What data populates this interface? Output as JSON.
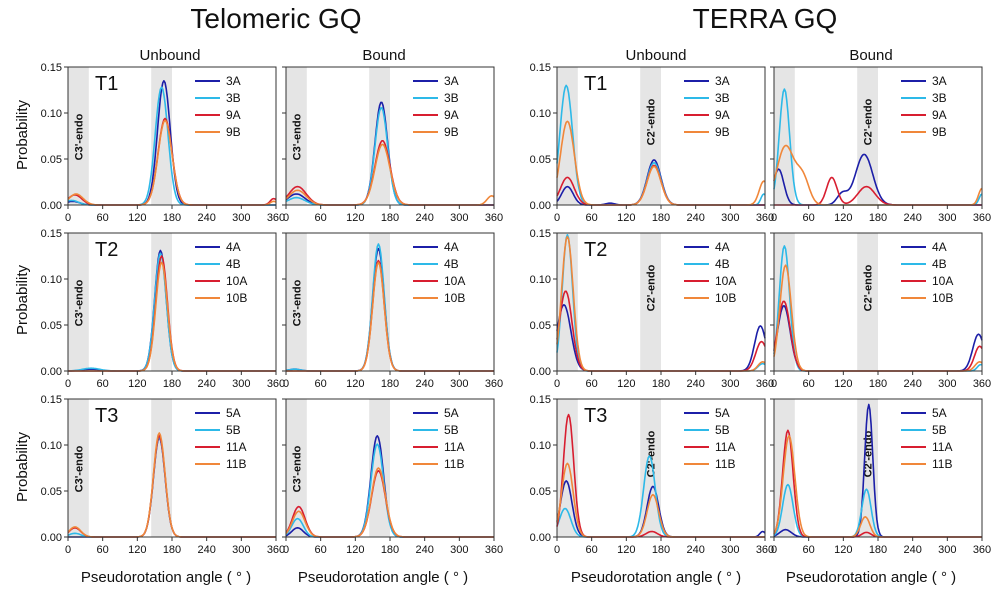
{
  "groups": {
    "telomeric": {
      "title": "Telomeric GQ"
    },
    "terra": {
      "title": "TERRA GQ"
    }
  },
  "columns": {
    "unbound": "Unbound",
    "bound": "Bound"
  },
  "axis": {
    "xlabel": "Pseudorotation angle ( ° )",
    "ylabel": "Probability",
    "xticks": [
      0,
      60,
      120,
      180,
      240,
      300,
      360
    ],
    "yticks": [
      "0.00",
      "0.05",
      "0.10",
      "0.15"
    ]
  },
  "rows": {
    "T1": {
      "label": "T1"
    },
    "T2": {
      "label": "T2"
    },
    "T3": {
      "label": "T3"
    }
  },
  "shade_labels": {
    "c3": "C3'-endo",
    "c2": "C2'-endo"
  },
  "colors": {
    "s1": "#1c1fa8",
    "s2": "#2db9e8",
    "s3": "#d81e30",
    "s4": "#f0873a",
    "shade": "#dcdcdc"
  },
  "chart_data": [
    {
      "type": "line",
      "group": "telomeric",
      "column": "unbound",
      "row": "T1",
      "xlim": [
        0,
        360
      ],
      "ylim": [
        0,
        0.15
      ],
      "shade_label": "c3",
      "series": [
        {
          "name": "3A",
          "color": "#1c1fa8",
          "peaks": [
            [
              166,
              11,
              0.135
            ],
            [
              8,
              12,
              0.004
            ]
          ]
        },
        {
          "name": "3B",
          "color": "#2db9e8",
          "peaks": [
            [
              162,
              11,
              0.128
            ],
            [
              6,
              12,
              0.005
            ]
          ]
        },
        {
          "name": "9A",
          "color": "#d81e30",
          "peaks": [
            [
              168,
              12,
              0.094
            ],
            [
              12,
              12,
              0.011
            ],
            [
              356,
              6,
              0.007
            ]
          ]
        },
        {
          "name": "9B",
          "color": "#f0873a",
          "peaks": [
            [
              168,
              12,
              0.092
            ],
            [
              14,
              12,
              0.012
            ],
            [
              356,
              6,
              0.004
            ]
          ]
        }
      ]
    },
    {
      "type": "line",
      "group": "telomeric",
      "column": "bound",
      "row": "T1",
      "xlim": [
        0,
        360
      ],
      "ylim": [
        0,
        0.15
      ],
      "shade_label": "c3",
      "series": [
        {
          "name": "3A",
          "color": "#1c1fa8",
          "peaks": [
            [
              165,
              11,
              0.112
            ],
            [
              18,
              15,
              0.012
            ]
          ]
        },
        {
          "name": "3B",
          "color": "#2db9e8",
          "peaks": [
            [
              165,
              11,
              0.106
            ],
            [
              18,
              15,
              0.008
            ]
          ]
        },
        {
          "name": "9A",
          "color": "#d81e30",
          "peaks": [
            [
              167,
              13,
              0.07
            ],
            [
              20,
              15,
              0.02
            ]
          ]
        },
        {
          "name": "9B",
          "color": "#f0873a",
          "peaks": [
            [
              167,
              13,
              0.066
            ],
            [
              20,
              15,
              0.016
            ],
            [
              356,
              8,
              0.01
            ]
          ]
        }
      ]
    },
    {
      "type": "line",
      "group": "terra",
      "column": "unbound",
      "row": "T1",
      "xlim": [
        0,
        360
      ],
      "ylim": [
        0,
        0.15
      ],
      "shade_label": "c2",
      "series": [
        {
          "name": "3A",
          "color": "#1c1fa8",
          "peaks": [
            [
              168,
              12,
              0.049
            ],
            [
              18,
              10,
              0.02
            ],
            [
              92,
              8,
              0.002
            ]
          ]
        },
        {
          "name": "3B",
          "color": "#2db9e8",
          "peaks": [
            [
              16,
              11,
              0.13
            ],
            [
              168,
              12,
              0.046
            ],
            [
              358,
              5,
              0.012
            ]
          ]
        },
        {
          "name": "9A",
          "color": "#d81e30",
          "peaks": [
            [
              168,
              12,
              0.043
            ],
            [
              18,
              12,
              0.03
            ]
          ]
        },
        {
          "name": "9B",
          "color": "#f0873a",
          "peaks": [
            [
              18,
              12,
              0.091
            ],
            [
              168,
              12,
              0.042
            ],
            [
              358,
              8,
              0.026
            ]
          ]
        }
      ]
    },
    {
      "type": "line",
      "group": "terra",
      "column": "bound",
      "row": "T1",
      "xlim": [
        0,
        360
      ],
      "ylim": [
        0,
        0.15
      ],
      "shade_label": "c2",
      "series": [
        {
          "name": "3A",
          "color": "#1c1fa8",
          "peaks": [
            [
              8,
              9,
              0.039
            ],
            [
              156,
              15,
              0.055
            ],
            [
              118,
              9,
              0.012
            ]
          ]
        },
        {
          "name": "3B",
          "color": "#2db9e8",
          "peaks": [
            [
              18,
              9,
              0.126
            ],
            [
              360,
              5,
              0.012
            ]
          ]
        },
        {
          "name": "9A",
          "color": "#d81e30",
          "peaks": [
            [
              100,
              9,
              0.03
            ],
            [
              160,
              15,
              0.02
            ]
          ]
        },
        {
          "name": "9B",
          "color": "#f0873a",
          "peaks": [
            [
              20,
              15,
              0.064
            ],
            [
              50,
              11,
              0.028
            ],
            [
              360,
              6,
              0.018
            ]
          ]
        }
      ]
    },
    {
      "type": "line",
      "group": "telomeric",
      "column": "unbound",
      "row": "T2",
      "xlim": [
        0,
        360
      ],
      "ylim": [
        0,
        0.15
      ],
      "shade_label": "c3",
      "series": [
        {
          "name": "4A",
          "color": "#1c1fa8",
          "peaks": [
            [
              160,
              10,
              0.131
            ],
            [
              40,
              15,
              0.002
            ]
          ]
        },
        {
          "name": "4B",
          "color": "#2db9e8",
          "peaks": [
            [
              160,
              10,
              0.128
            ],
            [
              40,
              15,
              0.003
            ]
          ]
        },
        {
          "name": "10A",
          "color": "#d81e30",
          "peaks": [
            [
              162,
              10,
              0.125
            ]
          ]
        },
        {
          "name": "10B",
          "color": "#f0873a",
          "peaks": [
            [
              162,
              10,
              0.118
            ]
          ]
        }
      ]
    },
    {
      "type": "line",
      "group": "telomeric",
      "column": "bound",
      "row": "T2",
      "xlim": [
        0,
        360
      ],
      "ylim": [
        0,
        0.15
      ],
      "shade_label": "c3",
      "series": [
        {
          "name": "4A",
          "color": "#1c1fa8",
          "peaks": [
            [
              160,
              10,
              0.133
            ],
            [
              15,
              10,
              0.002
            ]
          ]
        },
        {
          "name": "4B",
          "color": "#2db9e8",
          "peaks": [
            [
              160,
              10,
              0.138
            ],
            [
              15,
              10,
              0.002
            ]
          ]
        },
        {
          "name": "10A",
          "color": "#d81e30",
          "peaks": [
            [
              160,
              10,
              0.12
            ]
          ]
        },
        {
          "name": "10B",
          "color": "#f0873a",
          "peaks": [
            [
              160,
              10,
              0.118
            ]
          ]
        }
      ]
    },
    {
      "type": "line",
      "group": "terra",
      "column": "unbound",
      "row": "T2",
      "xlim": [
        0,
        360
      ],
      "ylim": [
        0,
        0.15
      ],
      "shade_label": "c2",
      "series": [
        {
          "name": "4A",
          "color": "#1c1fa8",
          "peaks": [
            [
              12,
              12,
              0.072
            ],
            [
              352,
              10,
              0.049
            ]
          ]
        },
        {
          "name": "4B",
          "color": "#2db9e8",
          "peaks": [
            [
              18,
              9,
              0.148
            ],
            [
              356,
              8,
              0.008
            ]
          ]
        },
        {
          "name": "10A",
          "color": "#d81e30",
          "peaks": [
            [
              15,
              11,
              0.087
            ],
            [
              354,
              10,
              0.032
            ]
          ]
        },
        {
          "name": "10B",
          "color": "#f0873a",
          "peaks": [
            [
              18,
              10,
              0.146
            ],
            [
              356,
              8,
              0.01
            ]
          ]
        }
      ]
    },
    {
      "type": "line",
      "group": "terra",
      "column": "bound",
      "row": "T2",
      "xlim": [
        0,
        360
      ],
      "ylim": [
        0,
        0.15
      ],
      "shade_label": "c2",
      "series": [
        {
          "name": "4A",
          "color": "#1c1fa8",
          "peaks": [
            [
              17,
              11,
              0.071
            ],
            [
              354,
              10,
              0.04
            ]
          ]
        },
        {
          "name": "4B",
          "color": "#2db9e8",
          "peaks": [
            [
              18,
              9,
              0.136
            ],
            [
              358,
              6,
              0.007
            ]
          ]
        },
        {
          "name": "10A",
          "color": "#d81e30",
          "peaks": [
            [
              17,
              11,
              0.076
            ],
            [
              356,
              9,
              0.027
            ]
          ]
        },
        {
          "name": "10B",
          "color": "#f0873a",
          "peaks": [
            [
              20,
              10,
              0.115
            ],
            [
              356,
              8,
              0.01
            ]
          ]
        }
      ]
    },
    {
      "type": "line",
      "group": "telomeric",
      "column": "unbound",
      "row": "T3",
      "xlim": [
        0,
        360
      ],
      "ylim": [
        0,
        0.15
      ],
      "shade_label": "c3",
      "series": [
        {
          "name": "5A",
          "color": "#1c1fa8",
          "peaks": [
            [
              158,
              10,
              0.108
            ]
          ]
        },
        {
          "name": "5B",
          "color": "#2db9e8",
          "peaks": [
            [
              158,
              10,
              0.109
            ],
            [
              12,
              10,
              0.004
            ]
          ]
        },
        {
          "name": "11A",
          "color": "#d81e30",
          "peaks": [
            [
              158,
              10,
              0.11
            ],
            [
              12,
              10,
              0.01
            ]
          ]
        },
        {
          "name": "11B",
          "color": "#f0873a",
          "peaks": [
            [
              158,
              10,
              0.113
            ],
            [
              12,
              10,
              0.011
            ]
          ]
        }
      ]
    },
    {
      "type": "line",
      "group": "telomeric",
      "column": "bound",
      "row": "T3",
      "xlim": [
        0,
        360
      ],
      "ylim": [
        0,
        0.15
      ],
      "shade_label": "c3",
      "series": [
        {
          "name": "5A",
          "color": "#1c1fa8",
          "peaks": [
            [
              158,
              11,
              0.11
            ],
            [
              20,
              10,
              0.01
            ]
          ]
        },
        {
          "name": "5B",
          "color": "#2db9e8",
          "peaks": [
            [
              158,
              11,
              0.101
            ],
            [
              20,
              10,
              0.02
            ]
          ]
        },
        {
          "name": "11A",
          "color": "#d81e30",
          "peaks": [
            [
              160,
              12,
              0.072
            ],
            [
              22,
              11,
              0.033
            ]
          ]
        },
        {
          "name": "11B",
          "color": "#f0873a",
          "peaks": [
            [
              160,
              12,
              0.075
            ],
            [
              22,
              11,
              0.028
            ]
          ]
        }
      ]
    },
    {
      "type": "line",
      "group": "terra",
      "column": "unbound",
      "row": "T3",
      "xlim": [
        0,
        360
      ],
      "ylim": [
        0,
        0.15
      ],
      "shade_label": "c2",
      "series": [
        {
          "name": "5A",
          "color": "#1c1fa8",
          "peaks": [
            [
              16,
              10,
              0.061
            ],
            [
              166,
              10,
              0.055
            ],
            [
              356,
              5,
              0.006
            ]
          ]
        },
        {
          "name": "5B",
          "color": "#2db9e8",
          "peaks": [
            [
              14,
              10,
              0.031
            ],
            [
              160,
              10,
              0.088
            ]
          ]
        },
        {
          "name": "11A",
          "color": "#d81e30",
          "peaks": [
            [
              20,
              9,
              0.133
            ],
            [
              164,
              10,
              0.006
            ]
          ]
        },
        {
          "name": "11B",
          "color": "#f0873a",
          "peaks": [
            [
              18,
              10,
              0.08
            ],
            [
              166,
              10,
              0.046
            ]
          ]
        }
      ]
    },
    {
      "type": "line",
      "group": "terra",
      "column": "bound",
      "row": "T3",
      "xlim": [
        0,
        360
      ],
      "ylim": [
        0,
        0.15
      ],
      "shade_label": "c2",
      "series": [
        {
          "name": "5A",
          "color": "#1c1fa8",
          "peaks": [
            [
              164,
              7,
              0.144
            ],
            [
              20,
              10,
              0.008
            ]
          ]
        },
        {
          "name": "5B",
          "color": "#2db9e8",
          "peaks": [
            [
              24,
              9,
              0.057
            ],
            [
              160,
              8,
              0.052
            ]
          ]
        },
        {
          "name": "11A",
          "color": "#d81e30",
          "peaks": [
            [
              24,
              9,
              0.116
            ],
            [
              160,
              8,
              0.005
            ]
          ]
        },
        {
          "name": "11B",
          "color": "#f0873a",
          "peaks": [
            [
              26,
              10,
              0.11
            ],
            [
              158,
              8,
              0.022
            ]
          ]
        }
      ]
    }
  ]
}
